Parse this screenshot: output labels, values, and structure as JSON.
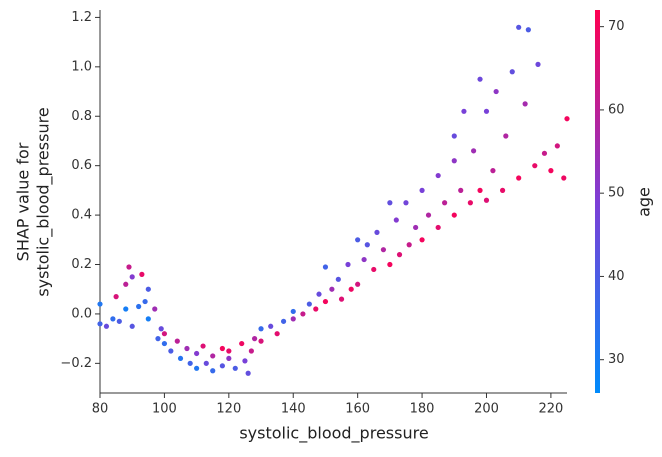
{
  "chart_data": {
    "type": "scatter",
    "xlabel": "systolic_blood_pressure",
    "ylabel": [
      "SHAP value for",
      "systolic_blood_pressure"
    ],
    "colorbar_label": "age",
    "xlim": [
      80,
      225
    ],
    "ylim": [
      -0.32,
      1.23
    ],
    "xticks": [
      80,
      100,
      120,
      140,
      160,
      180,
      200,
      220
    ],
    "yticks": [
      {
        "value": -0.2,
        "label": "−0.2"
      },
      {
        "value": 0,
        "label": "0.0"
      },
      0.2,
      0.4,
      0.6,
      0.8,
      {
        "value": 1,
        "label": "1.0"
      },
      1.2
    ],
    "clim": [
      26,
      72
    ],
    "cticks": [
      30,
      40,
      50,
      60,
      70
    ],
    "colormap": [
      "#008bfb",
      "#7d3ed6",
      "#ff0051"
    ],
    "x": [
      80,
      80,
      82,
      84,
      85,
      86,
      88,
      88,
      89,
      90,
      90,
      92,
      93,
      94,
      95,
      95,
      97,
      98,
      99,
      100,
      100,
      102,
      104,
      105,
      107,
      108,
      110,
      110,
      112,
      113,
      115,
      115,
      118,
      118,
      120,
      120,
      122,
      124,
      125,
      126,
      127,
      128,
      130,
      130,
      133,
      135,
      137,
      140,
      140,
      143,
      145,
      147,
      148,
      150,
      150,
      152,
      154,
      155,
      157,
      158,
      160,
      160,
      162,
      163,
      165,
      166,
      168,
      170,
      170,
      172,
      173,
      175,
      176,
      178,
      180,
      180,
      182,
      185,
      185,
      187,
      190,
      190,
      190,
      192,
      193,
      195,
      196,
      198,
      198,
      200,
      200,
      202,
      203,
      205,
      206,
      208,
      210,
      210,
      212,
      213,
      215,
      216,
      218,
      220,
      222,
      224,
      225
    ],
    "values": [
      0.04,
      -0.04,
      -0.05,
      -0.02,
      0.07,
      -0.03,
      0.12,
      0.02,
      0.19,
      0.15,
      -0.05,
      0.03,
      0.16,
      0.05,
      0.1,
      -0.02,
      0.02,
      -0.1,
      -0.06,
      -0.12,
      -0.08,
      -0.15,
      -0.11,
      -0.18,
      -0.14,
      -0.2,
      -0.16,
      -0.22,
      -0.13,
      -0.2,
      -0.17,
      -0.23,
      -0.14,
      -0.21,
      -0.18,
      -0.15,
      -0.22,
      -0.12,
      -0.19,
      -0.24,
      -0.15,
      -0.1,
      -0.06,
      -0.11,
      -0.05,
      -0.08,
      -0.03,
      -0.02,
      0.01,
      0,
      0.04,
      0.02,
      0.08,
      0.19,
      0.05,
      0.1,
      0.14,
      0.06,
      0.2,
      0.1,
      0.3,
      0.12,
      0.22,
      0.28,
      0.18,
      0.33,
      0.26,
      0.45,
      0.2,
      0.38,
      0.24,
      0.45,
      0.28,
      0.35,
      0.5,
      0.3,
      0.4,
      0.56,
      0.35,
      0.45,
      0.72,
      0.62,
      0.4,
      0.5,
      0.82,
      0.45,
      0.66,
      0.95,
      0.5,
      0.82,
      0.46,
      0.58,
      0.9,
      0.5,
      0.72,
      0.98,
      1.16,
      0.55,
      0.85,
      1.15,
      0.6,
      1.01,
      0.65,
      0.58,
      0.68,
      0.55,
      0.79
    ],
    "color_values": [
      32,
      38,
      45,
      35,
      65,
      40,
      60,
      30,
      62,
      50,
      42,
      34,
      68,
      36,
      40,
      30,
      55,
      38,
      45,
      35,
      64,
      40,
      60,
      33,
      55,
      38,
      50,
      32,
      66,
      45,
      58,
      36,
      70,
      42,
      52,
      68,
      40,
      69,
      48,
      44,
      62,
      58,
      36,
      65,
      45,
      67,
      38,
      55,
      35,
      62,
      40,
      68,
      45,
      38,
      70,
      55,
      42,
      66,
      48,
      69,
      40,
      64,
      52,
      42,
      68,
      45,
      58,
      44,
      70,
      50,
      66,
      47,
      62,
      55,
      48,
      70,
      58,
      50,
      67,
      60,
      45,
      52,
      70,
      60,
      48,
      68,
      55,
      46,
      70,
      48,
      66,
      60,
      52,
      68,
      58,
      44,
      42,
      70,
      56,
      40,
      68,
      46,
      62,
      70,
      64,
      69,
      70
    ]
  }
}
